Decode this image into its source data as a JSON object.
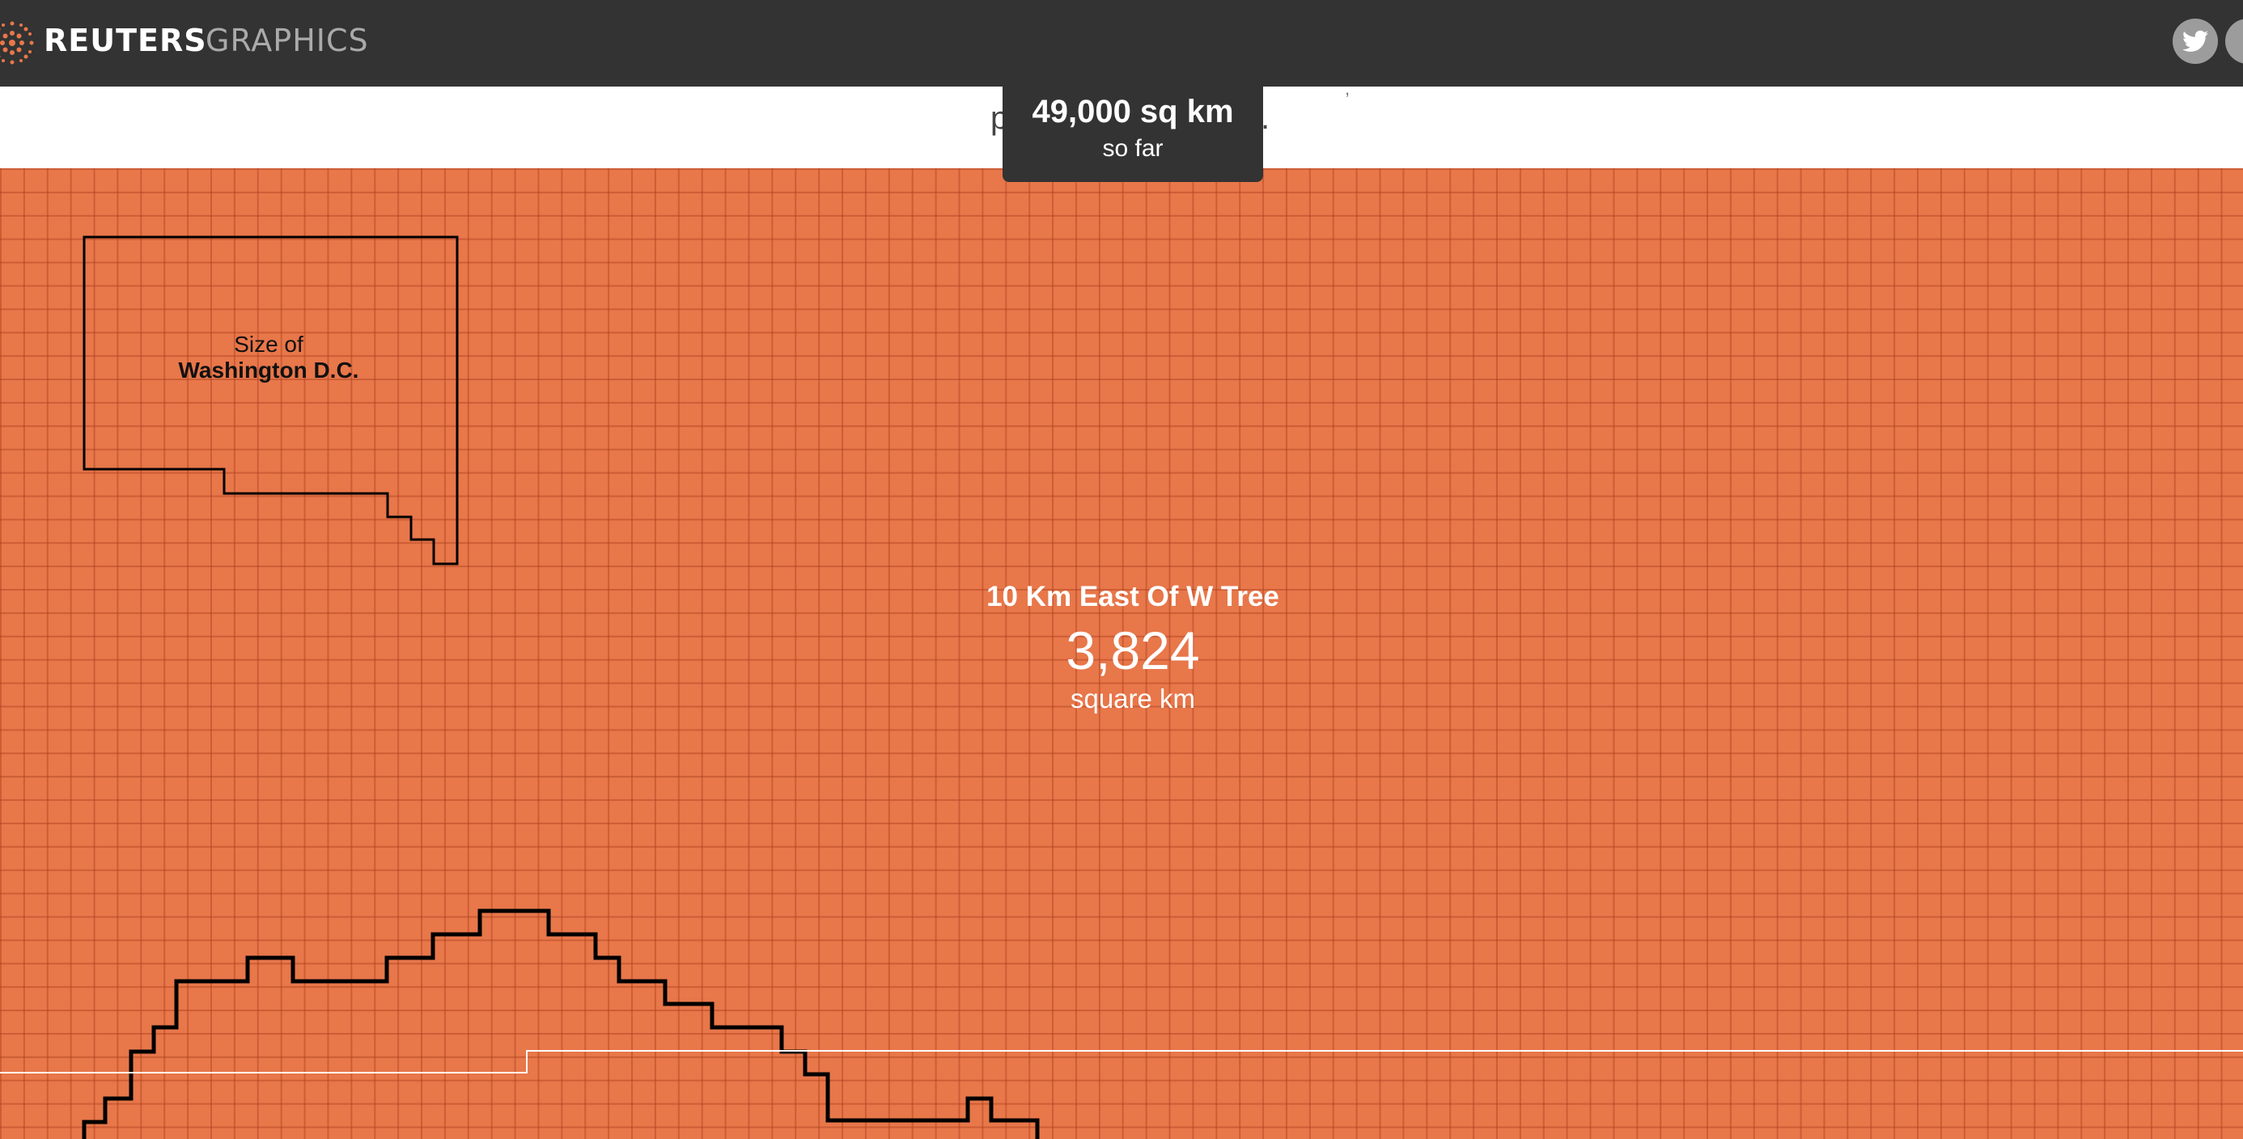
{
  "header": {
    "brand": "REUTERS",
    "section": "GRAPHICS",
    "logo_icon": "reuters-dot-logo-icon",
    "share_icons": [
      "twitter-icon",
      "share-icon"
    ]
  },
  "intro": {
    "visible_left_fragment": "p",
    "visible_right_fragment": ".",
    "top_mark": ","
  },
  "tooltip": {
    "value": "49,000 sq km",
    "caption": "so far"
  },
  "reference": {
    "line1": "Size of",
    "line2": "Washington D.C."
  },
  "fire": {
    "name": "10 Km East Of W Tree",
    "value": "3,824",
    "unit": "square km"
  },
  "colors": {
    "topbar": "#333333",
    "grid_fill": "#e8774a",
    "grid_lines": "#aa3e1c",
    "tooltip_bg": "#333333",
    "outline": "#000000",
    "progress_line": "#ffffff"
  }
}
